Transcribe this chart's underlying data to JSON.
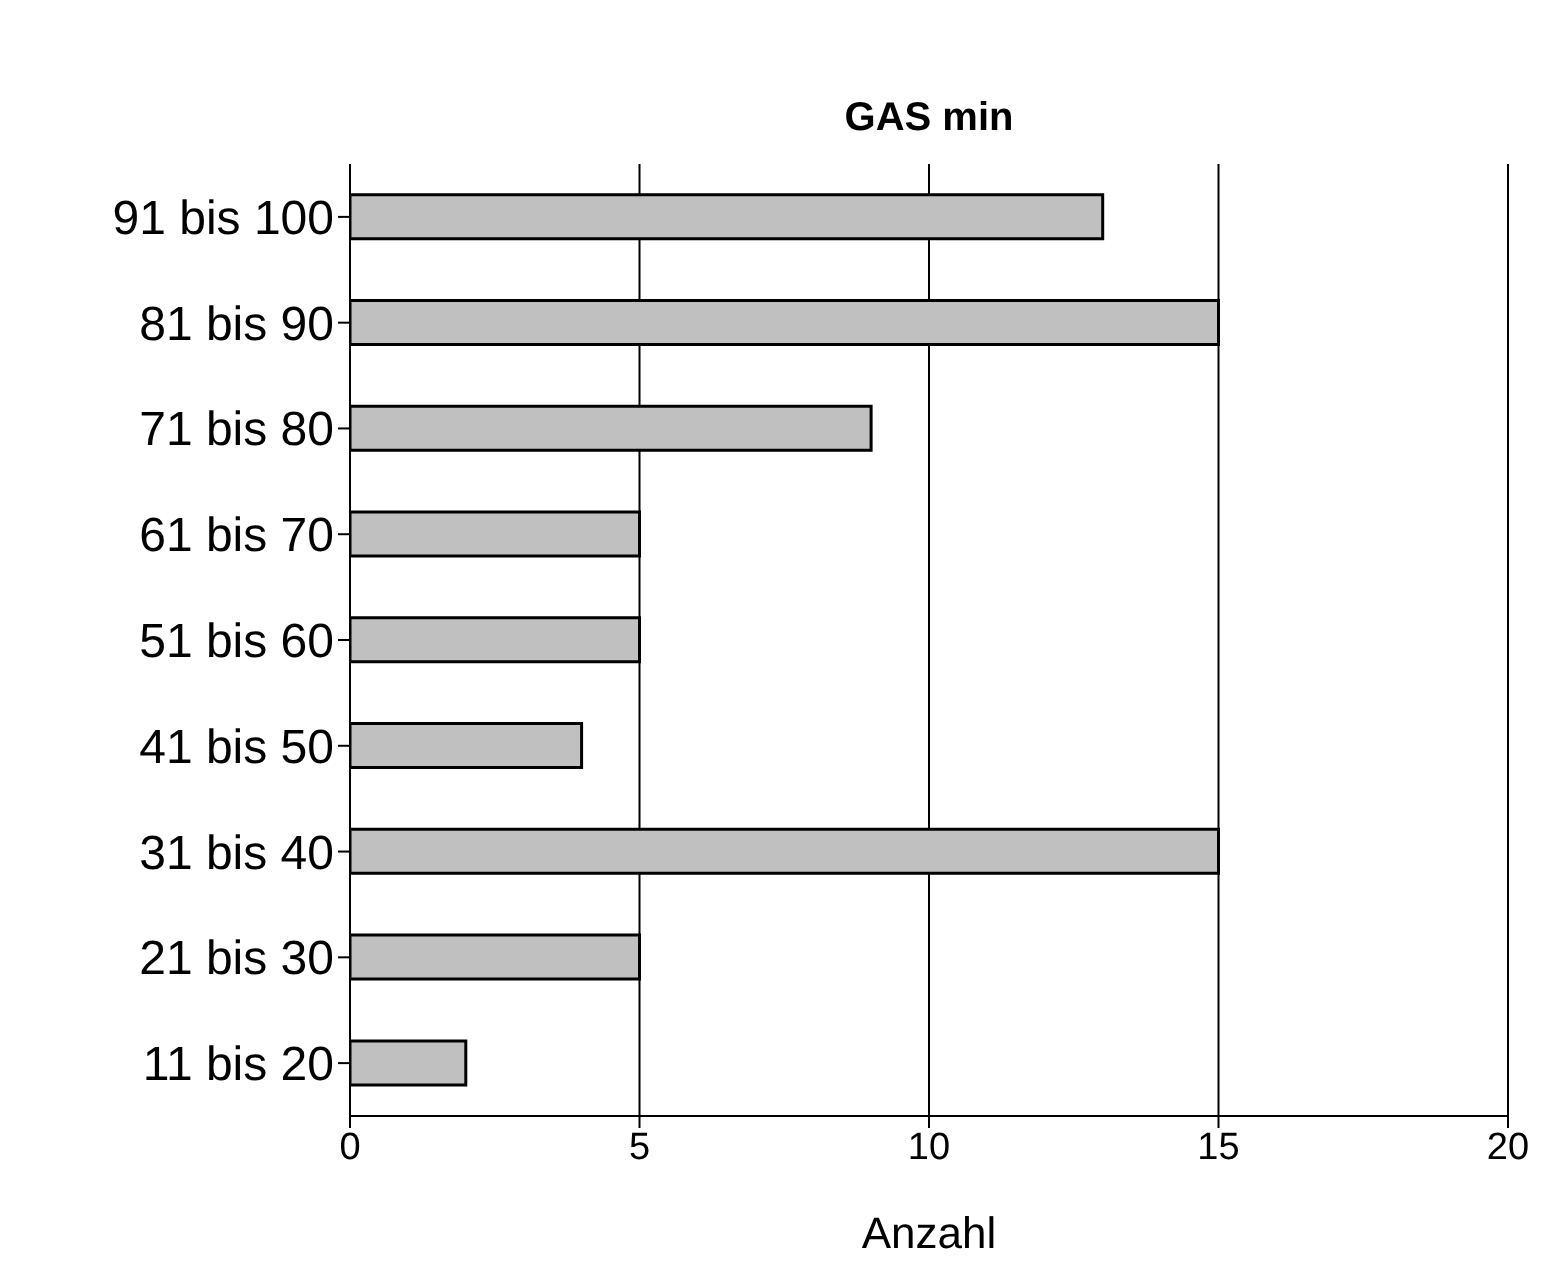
{
  "chart_data": {
    "type": "bar",
    "orientation": "horizontal",
    "title": "GAS min",
    "xlabel": "Anzahl",
    "categories": [
      "91 bis 100",
      "81 bis 90",
      "71 bis 80",
      "61 bis 70",
      "51 bis 60",
      "41 bis 50",
      "31 bis 40",
      "21 bis 30",
      "11 bis 20"
    ],
    "values": [
      13,
      15,
      9,
      5,
      5,
      4,
      15,
      5,
      2
    ],
    "color": "#c0c0c0",
    "xlim": [
      0,
      20
    ],
    "xticks": [
      0,
      5,
      10,
      15,
      20
    ],
    "grid": "x",
    "legend": false
  }
}
